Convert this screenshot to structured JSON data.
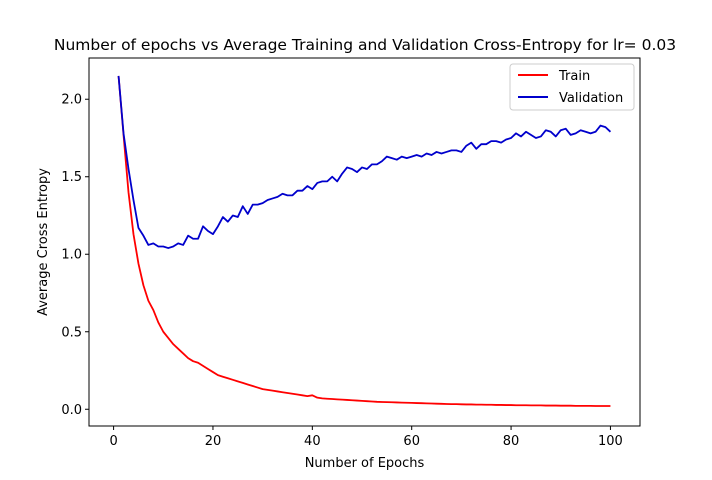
{
  "chart_data": {
    "type": "line",
    "title": "Number of epochs vs Average Training and Validation Cross-Entropy for lr= 0.03",
    "xlabel": "Number of Epochs",
    "ylabel": "Average Cross Entropy",
    "xlim": [
      -4.95,
      105.95
    ],
    "ylim": [
      -0.108,
      2.266
    ],
    "xticks": [
      0,
      20,
      40,
      60,
      80,
      100
    ],
    "yticks": [
      0.0,
      0.5,
      1.0,
      1.5,
      2.0
    ],
    "xtick_labels": [
      "0",
      "20",
      "40",
      "60",
      "80",
      "100"
    ],
    "ytick_labels": [
      "0.0",
      "0.5",
      "1.0",
      "1.5",
      "2.0"
    ],
    "grid": false,
    "legend_position": "top-right",
    "series": [
      {
        "name": "Train",
        "color": "#ff0000",
        "x": [
          1,
          2,
          3,
          4,
          5,
          6,
          7,
          8,
          9,
          10,
          11,
          12,
          13,
          14,
          15,
          16,
          17,
          18,
          19,
          20,
          21,
          22,
          23,
          24,
          25,
          26,
          27,
          28,
          29,
          30,
          31,
          32,
          33,
          34,
          35,
          36,
          37,
          38,
          39,
          40,
          41,
          42,
          43,
          44,
          45,
          46,
          47,
          48,
          49,
          50,
          51,
          52,
          53,
          54,
          55,
          56,
          57,
          58,
          59,
          60,
          61,
          62,
          63,
          64,
          65,
          66,
          67,
          68,
          69,
          70,
          71,
          72,
          73,
          74,
          75,
          76,
          77,
          78,
          79,
          80,
          81,
          82,
          83,
          84,
          85,
          86,
          87,
          88,
          89,
          90,
          91,
          92,
          93,
          94,
          95,
          96,
          97,
          98,
          99,
          100
        ],
        "values": [
          2.15,
          1.77,
          1.4,
          1.13,
          0.94,
          0.8,
          0.7,
          0.64,
          0.56,
          0.5,
          0.46,
          0.42,
          0.39,
          0.36,
          0.33,
          0.31,
          0.3,
          0.28,
          0.26,
          0.24,
          0.22,
          0.21,
          0.2,
          0.19,
          0.18,
          0.17,
          0.16,
          0.15,
          0.14,
          0.13,
          0.125,
          0.12,
          0.115,
          0.11,
          0.105,
          0.1,
          0.095,
          0.09,
          0.085,
          0.09,
          0.075,
          0.07,
          0.068,
          0.066,
          0.064,
          0.062,
          0.06,
          0.058,
          0.056,
          0.054,
          0.052,
          0.05,
          0.048,
          0.047,
          0.046,
          0.045,
          0.044,
          0.043,
          0.042,
          0.041,
          0.04,
          0.039,
          0.038,
          0.037,
          0.036,
          0.035,
          0.034,
          0.033,
          0.033,
          0.032,
          0.031,
          0.031,
          0.03,
          0.03,
          0.029,
          0.029,
          0.028,
          0.028,
          0.027,
          0.027,
          0.026,
          0.026,
          0.026,
          0.025,
          0.025,
          0.025,
          0.024,
          0.024,
          0.024,
          0.023,
          0.023,
          0.023,
          0.022,
          0.022,
          0.022,
          0.022,
          0.021,
          0.021,
          0.021,
          0.021
        ]
      },
      {
        "name": "Validation",
        "color": "#0000cc",
        "x": [
          1,
          2,
          3,
          4,
          5,
          6,
          7,
          8,
          9,
          10,
          11,
          12,
          13,
          14,
          15,
          16,
          17,
          18,
          19,
          20,
          21,
          22,
          23,
          24,
          25,
          26,
          27,
          28,
          29,
          30,
          31,
          32,
          33,
          34,
          35,
          36,
          37,
          38,
          39,
          40,
          41,
          42,
          43,
          44,
          45,
          46,
          47,
          48,
          49,
          50,
          51,
          52,
          53,
          54,
          55,
          56,
          57,
          58,
          59,
          60,
          61,
          62,
          63,
          64,
          65,
          66,
          67,
          68,
          69,
          70,
          71,
          72,
          73,
          74,
          75,
          76,
          77,
          78,
          79,
          80,
          81,
          82,
          83,
          84,
          85,
          86,
          87,
          88,
          89,
          90,
          91,
          92,
          93,
          94,
          95,
          96,
          97,
          98,
          99,
          100
        ],
        "values": [
          2.15,
          1.78,
          1.55,
          1.35,
          1.17,
          1.12,
          1.06,
          1.07,
          1.05,
          1.05,
          1.04,
          1.05,
          1.07,
          1.06,
          1.12,
          1.1,
          1.1,
          1.18,
          1.15,
          1.13,
          1.18,
          1.24,
          1.21,
          1.25,
          1.24,
          1.31,
          1.26,
          1.32,
          1.32,
          1.33,
          1.35,
          1.36,
          1.37,
          1.39,
          1.38,
          1.38,
          1.41,
          1.41,
          1.44,
          1.42,
          1.46,
          1.47,
          1.47,
          1.5,
          1.47,
          1.52,
          1.56,
          1.55,
          1.53,
          1.56,
          1.55,
          1.58,
          1.58,
          1.6,
          1.63,
          1.62,
          1.61,
          1.63,
          1.62,
          1.63,
          1.64,
          1.63,
          1.65,
          1.64,
          1.66,
          1.65,
          1.66,
          1.67,
          1.67,
          1.66,
          1.7,
          1.72,
          1.68,
          1.71,
          1.71,
          1.73,
          1.73,
          1.72,
          1.74,
          1.75,
          1.78,
          1.76,
          1.79,
          1.77,
          1.75,
          1.76,
          1.8,
          1.79,
          1.76,
          1.8,
          1.81,
          1.77,
          1.78,
          1.8,
          1.79,
          1.78,
          1.79,
          1.83,
          1.82,
          1.79
        ]
      }
    ]
  }
}
